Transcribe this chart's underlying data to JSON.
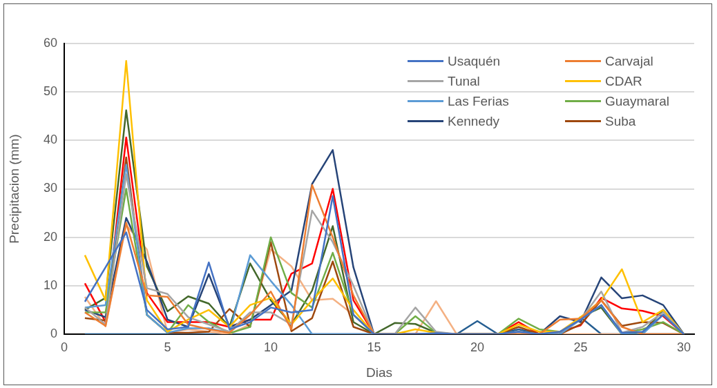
{
  "chart_data": {
    "type": "line",
    "xlabel": "Dias",
    "ylabel": "Precipitacion (mm)",
    "x": [
      1,
      2,
      3,
      4,
      5,
      6,
      7,
      8,
      9,
      10,
      11,
      12,
      13,
      14,
      15,
      16,
      17,
      18,
      19,
      20,
      21,
      22,
      23,
      24,
      25,
      26,
      27,
      28,
      29,
      30
    ],
    "xlim": [
      0,
      30.5
    ],
    "xticks": [
      0,
      5,
      10,
      15,
      20,
      25,
      30
    ],
    "ylim": [
      0,
      60
    ],
    "yticks": [
      0,
      10,
      20,
      30,
      40,
      50,
      60
    ],
    "grid": "y",
    "legend": "top right",
    "marker": "none",
    "line_style": "solid",
    "series": [
      {
        "name": "Usaquén",
        "color": "#4472c4",
        "values": [
          6.7,
          13.8,
          21,
          5,
          1,
          1.5,
          14.8,
          1,
          2.5,
          5.5,
          4.5,
          5,
          28.5,
          4,
          0,
          0,
          0,
          0.2,
          0,
          0,
          0,
          0.5,
          0,
          0.5,
          3,
          6,
          0.3,
          0.5,
          4,
          0
        ]
      },
      {
        "name": "Carvajal",
        "color": "#ed7d31",
        "values": [
          4.5,
          1.7,
          23,
          8,
          7.7,
          2,
          1,
          0.3,
          4,
          8.8,
          1,
          30.8,
          20,
          8,
          0,
          0,
          0,
          0,
          0,
          0,
          0,
          0,
          0,
          3,
          3.2,
          7,
          1.5,
          0,
          0,
          0
        ]
      },
      {
        "name": "Tunal",
        "color": "#a5a5a5",
        "values": [
          5.5,
          2,
          33,
          9.5,
          8.3,
          3.5,
          2,
          0.5,
          4.5,
          4.5,
          2,
          25.5,
          19,
          10,
          0,
          0,
          5.5,
          0.5,
          0,
          0,
          0,
          0.5,
          0,
          0.5,
          3,
          8.8,
          0.3,
          1.5,
          4.5,
          0
        ]
      },
      {
        "name": "CDAR",
        "color": "#ffc000",
        "values": [
          16.3,
          7,
          56.4,
          7,
          0.5,
          3,
          5,
          1.5,
          6,
          7.5,
          2,
          7,
          11.5,
          5,
          0,
          0,
          1,
          0.3,
          0,
          0,
          0,
          2,
          0.5,
          0.5,
          3.5,
          7,
          13.4,
          2.5,
          5,
          0
        ]
      },
      {
        "name": "Las Ferias",
        "color": "#5b9bd5",
        "values": [
          5.5,
          6,
          35,
          4,
          0.3,
          1.2,
          1.2,
          0.3,
          16.3,
          11,
          6,
          0,
          0,
          0,
          0,
          0,
          0,
          0,
          0,
          0,
          0,
          0,
          0,
          0,
          3,
          6,
          0,
          0,
          4,
          0
        ]
      },
      {
        "name": "Guaymaral",
        "color": "#70ad47",
        "values": [
          4.5,
          4.5,
          30,
          4,
          0.3,
          6,
          2.5,
          0.2,
          1.5,
          20,
          8.5,
          5.5,
          16.8,
          4,
          0,
          0,
          3.7,
          0.3,
          0,
          0,
          0,
          3.2,
          1,
          0.5,
          3,
          6,
          0.2,
          1,
          2.5,
          0
        ]
      },
      {
        "name": "Kennedy",
        "color": "#264478",
        "values": [
          5,
          3.5,
          24,
          15,
          3,
          1.5,
          12.4,
          1.5,
          3,
          6,
          9,
          31,
          38,
          13.8,
          0,
          0,
          0,
          0,
          0,
          0,
          0,
          0,
          0,
          3.7,
          2.5,
          11.7,
          7.4,
          8,
          6,
          0
        ]
      },
      {
        "name": "Suba",
        "color": "#9e480e",
        "values": [
          3.3,
          2.8,
          36.5,
          4,
          0.3,
          0.3,
          0.5,
          5.2,
          1.5,
          19,
          0.6,
          3.3,
          15,
          1.5,
          0,
          0,
          0,
          0,
          0,
          0,
          0,
          1.5,
          0,
          0,
          2,
          7,
          1.7,
          2.5,
          2.3,
          0
        ]
      },
      {
        "color": "#ff0000",
        "values": [
          10.5,
          2.5,
          40.6,
          8.5,
          2.5,
          2.5,
          2.5,
          1.5,
          3,
          3,
          12.5,
          14.6,
          30,
          7,
          0,
          0,
          0,
          0,
          0,
          0,
          0,
          2.5,
          0,
          0.5,
          1.8,
          7.5,
          5.3,
          4.8,
          3.7,
          0
        ]
      },
      {
        "color": "#43682b",
        "values": [
          5,
          7.5,
          46.2,
          14,
          4.7,
          7.8,
          6.3,
          1.5,
          14.6,
          7,
          2,
          9,
          22.3,
          2.5,
          0,
          2.3,
          2.1,
          0.3,
          0,
          0,
          0,
          0.5,
          0,
          0,
          3.5,
          5.5,
          0,
          0.3,
          5,
          0
        ]
      },
      {
        "color": "#f4b183",
        "values": [
          7.7,
          1.6,
          22.5,
          17.5,
          0.3,
          1,
          0.5,
          0,
          2,
          17.5,
          14,
          7,
          7.3,
          4,
          0,
          0,
          0,
          6.8,
          0,
          0,
          0,
          0,
          0,
          0,
          0,
          0,
          0,
          0,
          0,
          0
        ]
      },
      {
        "color": "#255e91",
        "values": [
          0,
          0,
          0,
          0,
          0,
          0,
          0,
          0,
          0,
          0,
          0,
          0,
          0,
          0,
          0,
          0,
          0,
          0,
          0,
          2.7,
          0,
          1,
          0,
          0,
          3.5,
          0,
          0,
          0,
          0,
          0
        ]
      }
    ]
  }
}
